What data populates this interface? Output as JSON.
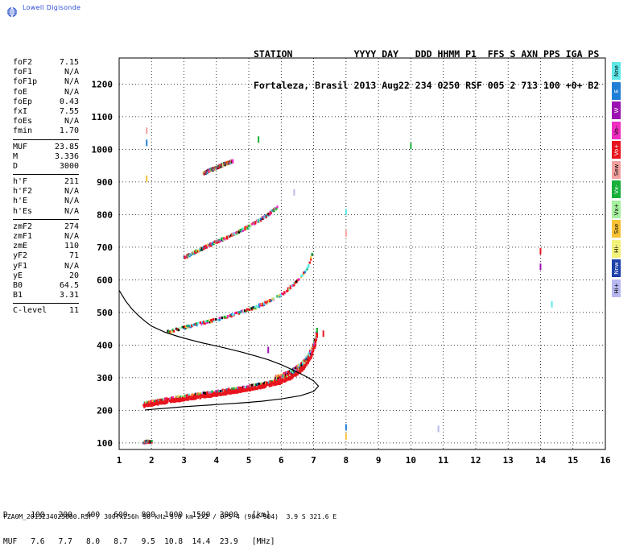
{
  "logo": {
    "text": "Lowell Digisonde"
  },
  "header": {
    "line1": "STATION           YYYY DAY   DDD HHMM P1  FFS S AXN PPS IGA PS",
    "line2": "Fortaleza, Brasil 2013 Aug22 234 0250 RSF 005 2 713 100 +0+ B2"
  },
  "params": [
    {
      "k": "foF2",
      "v": "7.15"
    },
    {
      "k": "foF1",
      "v": "N/A"
    },
    {
      "k": "foF1p",
      "v": "N/A"
    },
    {
      "k": "foE",
      "v": "N/A"
    },
    {
      "k": "foEp",
      "v": "0.43"
    },
    {
      "k": "fxI",
      "v": "7.55"
    },
    {
      "k": "foEs",
      "v": "N/A"
    },
    {
      "k": "fmin",
      "v": "1.70"
    },
    {
      "sep": true
    },
    {
      "k": "MUF",
      "v": "23.85"
    },
    {
      "k": "M",
      "v": "3.336"
    },
    {
      "k": "D",
      "v": "3000"
    },
    {
      "sep": true
    },
    {
      "k": "h'F",
      "v": "211"
    },
    {
      "k": "h'F2",
      "v": "N/A"
    },
    {
      "k": "h'E",
      "v": "N/A"
    },
    {
      "k": "h'Es",
      "v": "N/A"
    },
    {
      "sep": true
    },
    {
      "k": "zmF2",
      "v": "274"
    },
    {
      "k": "zmF1",
      "v": "N/A"
    },
    {
      "k": "zmE",
      "v": "110"
    },
    {
      "k": "yF2",
      "v": "71"
    },
    {
      "k": "yF1",
      "v": "N/A"
    },
    {
      "k": "yE",
      "v": "20"
    },
    {
      "k": "B0",
      "v": "64.5"
    },
    {
      "k": "B1",
      "v": "3.31"
    },
    {
      "sep": true
    },
    {
      "k": "C-level",
      "v": "11"
    }
  ],
  "legend": [
    {
      "label": "Nne",
      "color": "#5ee8e8"
    },
    {
      "label": "E",
      "color": "#1f7fd6"
    },
    {
      "label": "W",
      "color": "#9a10b0"
    },
    {
      "label": "Vo-",
      "color": "#f02ec0"
    },
    {
      "label": "Vo+",
      "color": "#e8141e"
    },
    {
      "label": "Sew",
      "color": "#f2a0a0"
    },
    {
      "label": "Vx-",
      "color": "#16b03a"
    },
    {
      "label": "Vx+",
      "color": "#a6f0a0"
    },
    {
      "label": "Sse",
      "color": "#f7c235"
    },
    {
      "label": "Hi-",
      "color": "#f2f27a"
    },
    {
      "label": "Nnw",
      "color": "#1c3fa8"
    },
    {
      "label": "Hi+",
      "color": "#b8b8f0"
    }
  ],
  "bottom": {
    "line1": "D     100   200   400   600   800  1000  1500  3000   [km]",
    "line2": "MUF   7.6   7.7   8.0   8.7   9.5  10.8  14.4  23.9   [MHz]"
  },
  "footer": "FZA0M_2013234025000.RSF / 300fx256h 50 kHz 5.0 km 2x2 / DPS-4 (904-904)  3.9 S 321.6 E",
  "chart_data": {
    "type": "scatter",
    "xlim": [
      1,
      16
    ],
    "ylim": [
      80,
      1280
    ],
    "xticks": [
      1,
      2,
      3,
      4,
      5,
      6,
      7,
      8,
      9,
      10,
      11,
      12,
      13,
      14,
      15,
      16
    ],
    "yticks": [
      100,
      200,
      300,
      400,
      500,
      600,
      700,
      800,
      900,
      1000,
      1100,
      1200
    ],
    "grid": true,
    "traces": [
      {
        "name": "E-trace",
        "x": [
          1.75,
          1.8,
          1.85,
          1.9,
          1.95,
          2.0
        ],
        "y": [
          104,
          104,
          106,
          106,
          104,
          107
        ]
      },
      {
        "name": "F-1hop",
        "x": [
          1.75,
          2.0,
          2.5,
          3.0,
          3.5,
          4.0,
          4.5,
          5.0,
          5.5,
          6.0,
          6.3,
          6.6,
          6.8,
          6.95,
          7.05,
          7.1
        ],
        "y": [
          215,
          220,
          228,
          236,
          243,
          250,
          258,
          266,
          276,
          288,
          302,
          322,
          345,
          372,
          402,
          430
        ]
      },
      {
        "name": "F-2hop",
        "x": [
          2.5,
          3.0,
          3.5,
          4.0,
          4.5,
          5.0,
          5.5,
          6.0,
          6.3,
          6.6,
          6.85,
          6.95
        ],
        "y": [
          442,
          455,
          468,
          480,
          494,
          510,
          530,
          555,
          580,
          610,
          645,
          680
        ]
      },
      {
        "name": "F-3hop",
        "x": [
          3.0,
          3.5,
          4.0,
          4.5,
          5.0,
          5.5,
          5.9
        ],
        "y": [
          670,
          695,
          718,
          740,
          765,
          795,
          825
        ]
      },
      {
        "name": "F-4hop",
        "x": [
          3.6,
          3.8,
          4.0,
          4.2,
          4.5
        ],
        "y": [
          928,
          938,
          945,
          955,
          965
        ]
      }
    ],
    "scattered": [
      {
        "x": 1.85,
        "y": 1057
      },
      {
        "x": 1.85,
        "y": 1020
      },
      {
        "x": 1.85,
        "y": 910
      },
      {
        "x": 5.3,
        "y": 1030
      },
      {
        "x": 6.4,
        "y": 868
      },
      {
        "x": 7.3,
        "y": 435
      },
      {
        "x": 5.6,
        "y": 385
      },
      {
        "x": 8.0,
        "y": 808
      },
      {
        "x": 8.0,
        "y": 742
      },
      {
        "x": 8.0,
        "y": 148
      },
      {
        "x": 8.0,
        "y": 120
      },
      {
        "x": 10.0,
        "y": 1010
      },
      {
        "x": 10.85,
        "y": 143
      },
      {
        "x": 14.0,
        "y": 688
      },
      {
        "x": 14.0,
        "y": 640
      },
      {
        "x": 14.35,
        "y": 525
      }
    ],
    "profile": {
      "x": [
        1.0,
        1.2,
        1.4,
        1.6,
        1.8,
        2.0,
        2.4,
        2.8,
        3.2,
        3.6,
        4.0,
        4.4,
        4.8,
        5.2,
        5.6,
        6.0,
        6.4,
        6.8,
        7.0,
        7.15,
        7.0,
        6.6,
        6.0,
        5.4,
        4.8,
        4.2,
        3.6,
        3.0,
        2.5,
        2.0,
        1.8
      ],
      "y": [
        568,
        535,
        510,
        490,
        473,
        458,
        440,
        427,
        416,
        406,
        397,
        388,
        378,
        367,
        355,
        340,
        322,
        302,
        290,
        274,
        258,
        245,
        235,
        228,
        223,
        219,
        215,
        211,
        207,
        203,
        201
      ]
    },
    "muf_table": {
      "D_km": [
        100,
        200,
        400,
        600,
        800,
        1000,
        1500,
        3000
      ],
      "MUF_MHz": [
        7.6,
        7.7,
        8.0,
        8.7,
        9.5,
        10.8,
        14.4,
        23.9
      ]
    }
  }
}
